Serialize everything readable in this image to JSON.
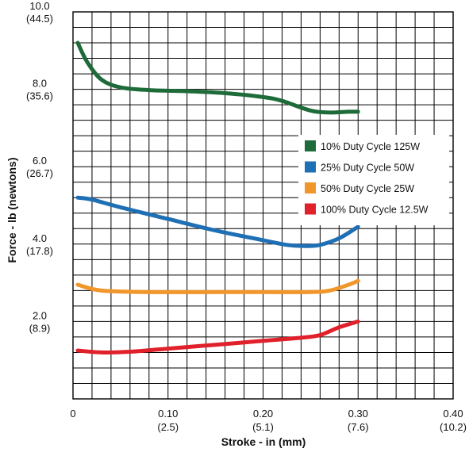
{
  "chart_data": {
    "type": "line",
    "xlabel": "Stroke - in (mm)",
    "ylabel": "Force - lb (newtons)",
    "xlim": [
      0,
      0.4
    ],
    "ylim": [
      0,
      10.0
    ],
    "grid": true,
    "legend_position": "right",
    "x_ticks": [
      {
        "value": 0,
        "label": "0",
        "sublabel": ""
      },
      {
        "value": 0.1,
        "label": "0.10",
        "sublabel": "(2.5)"
      },
      {
        "value": 0.2,
        "label": "0.20",
        "sublabel": "(5.1)"
      },
      {
        "value": 0.3,
        "label": "0.30",
        "sublabel": "(7.6)"
      },
      {
        "value": 0.4,
        "label": "0.40",
        "sublabel": "(10.2)"
      }
    ],
    "y_ticks": [
      {
        "value": 10.0,
        "label": "10.0",
        "sublabel": "(44.5)"
      },
      {
        "value": 8.0,
        "label": "8.0",
        "sublabel": "(35.6)"
      },
      {
        "value": 6.0,
        "label": "6.0",
        "sublabel": "(26.7)"
      },
      {
        "value": 4.0,
        "label": "4.0",
        "sublabel": "(17.8)"
      },
      {
        "value": 2.0,
        "label": "2.0",
        "sublabel": "(8.9)"
      }
    ],
    "series": [
      {
        "name": "10% Duty Cycle 125W",
        "color": "#1e6b3a",
        "x": [
          0.005,
          0.015,
          0.03,
          0.05,
          0.08,
          0.12,
          0.16,
          0.2,
          0.22,
          0.25,
          0.27,
          0.29,
          0.3
        ],
        "y": [
          9.2,
          8.7,
          8.25,
          8.05,
          7.98,
          7.95,
          7.9,
          7.8,
          7.7,
          7.45,
          7.4,
          7.42,
          7.42
        ]
      },
      {
        "name": "25% Duty Cycle 50W",
        "color": "#1f6fb5",
        "x": [
          0.005,
          0.02,
          0.05,
          0.1,
          0.15,
          0.2,
          0.225,
          0.245,
          0.26,
          0.28,
          0.3
        ],
        "y": [
          5.2,
          5.15,
          4.95,
          4.65,
          4.35,
          4.1,
          3.98,
          3.95,
          3.98,
          4.15,
          4.45
        ]
      },
      {
        "name": "50% Duty Cycle 25W",
        "color": "#f0962a",
        "x": [
          0.005,
          0.03,
          0.08,
          0.15,
          0.2,
          0.25,
          0.27,
          0.29,
          0.3
        ],
        "y": [
          2.95,
          2.8,
          2.76,
          2.76,
          2.76,
          2.76,
          2.8,
          2.95,
          3.05
        ]
      },
      {
        "name": "100% Duty Cycle 12.5W",
        "color": "#e0202a",
        "x": [
          0.005,
          0.03,
          0.06,
          0.1,
          0.15,
          0.2,
          0.24,
          0.26,
          0.28,
          0.3
        ],
        "y": [
          1.25,
          1.2,
          1.22,
          1.3,
          1.4,
          1.5,
          1.58,
          1.65,
          1.85,
          2.0
        ]
      }
    ]
  }
}
